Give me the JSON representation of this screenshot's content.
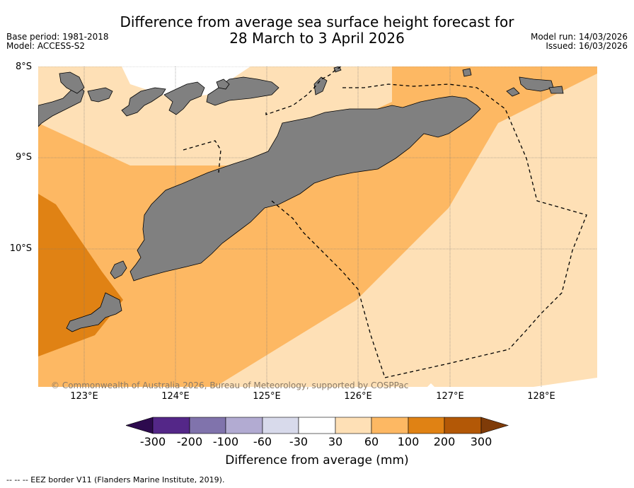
{
  "title_line1": "Difference from average sea surface height forecast for",
  "title_line2": "28 March to 3 April 2026",
  "base_period": "Base period: 1981-2018",
  "model": "Model: ACCESS-S2",
  "model_run": "Model run: 14/03/2026",
  "issued": "Issued: 16/03/2026",
  "lat_labels": [
    "8°S",
    "9°S",
    "10°S"
  ],
  "lon_labels": [
    "123°E",
    "124°E",
    "125°E",
    "126°E",
    "127°E",
    "128°E"
  ],
  "copyright": "© Commonwealth of Australia 2026, Bureau of Meteorology, supported by COSPPac",
  "colorbar": {
    "title": "Difference from average (mm)",
    "tick_labels": [
      "-300",
      "-200",
      "-100",
      "-60",
      "-30",
      "30",
      "60",
      "100",
      "200",
      "300"
    ],
    "colors": [
      "#2d0a4e",
      "#542788",
      "#8073ac",
      "#b2abd2",
      "#d8daeb",
      "#ffffff",
      "#fee0b6",
      "#fdb863",
      "#e08214",
      "#b35806",
      "#7f3b08"
    ]
  },
  "map_colors": {
    "land": "#808080",
    "band_30_60": "#fee0b6",
    "band_60_100": "#fdb863",
    "band_100_200": "#e08214"
  },
  "footnote": "--  --  -- EEZ border V11 (Flanders Marine Institute, 2019)."
}
